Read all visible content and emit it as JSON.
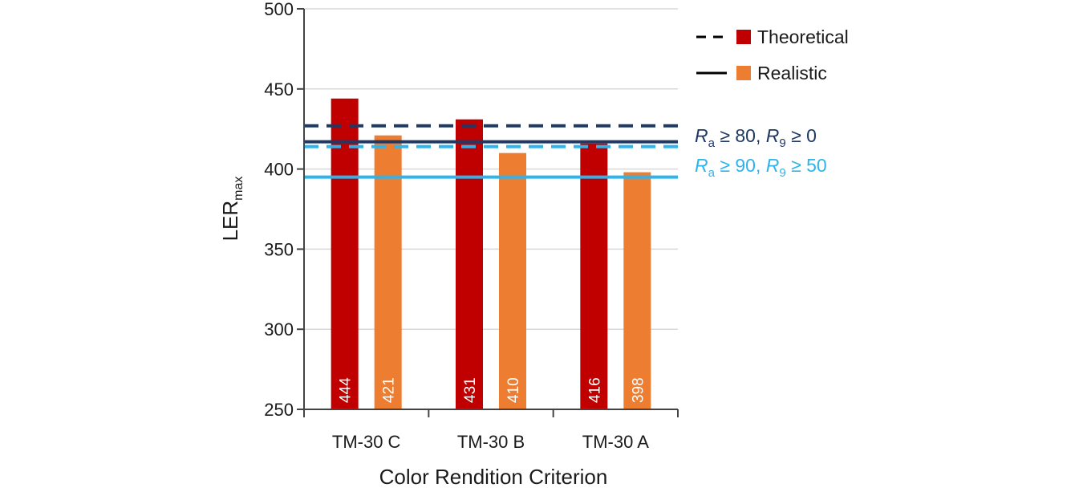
{
  "chart_data": {
    "type": "bar",
    "title": "",
    "xlabel": "Color Rendition Criterion",
    "ylabel": "LER",
    "ylabel_subscript": "max",
    "ylim": [
      250,
      500
    ],
    "yticks": [
      250,
      300,
      350,
      400,
      450,
      500
    ],
    "categories": [
      "TM-30 C",
      "TM-30 B",
      "TM-30 A"
    ],
    "series": [
      {
        "name": "Theoretical",
        "color": "#c00000",
        "values": [
          444,
          431,
          416
        ],
        "value_labels": [
          "444",
          "431",
          "416"
        ]
      },
      {
        "name": "Realistic",
        "color": "#ed7d31",
        "values": [
          421,
          410,
          398
        ],
        "value_labels": [
          "421",
          "410",
          "398"
        ]
      }
    ],
    "legend": {
      "placement": "top-right",
      "entries": [
        {
          "label": "Theoretical",
          "line_style": "dashed",
          "swatch_color": "#c00000"
        },
        {
          "label": "Realistic",
          "line_style": "solid",
          "swatch_color": "#ed7d31"
        }
      ]
    },
    "reference_lines": [
      {
        "id": "ra80",
        "label_parts": [
          "R",
          "a",
          " ≥ 80, ",
          "R",
          "9",
          " ≥ 0"
        ],
        "color": "#1f3864",
        "theoretical": 427,
        "realistic": 417
      },
      {
        "id": "ra90",
        "label_parts": [
          "R",
          "a",
          " ≥ 90, ",
          "R",
          "9",
          " ≥ 50"
        ],
        "color": "#2eb4ec",
        "theoretical": 414,
        "realistic": 395
      }
    ],
    "grid": true
  }
}
